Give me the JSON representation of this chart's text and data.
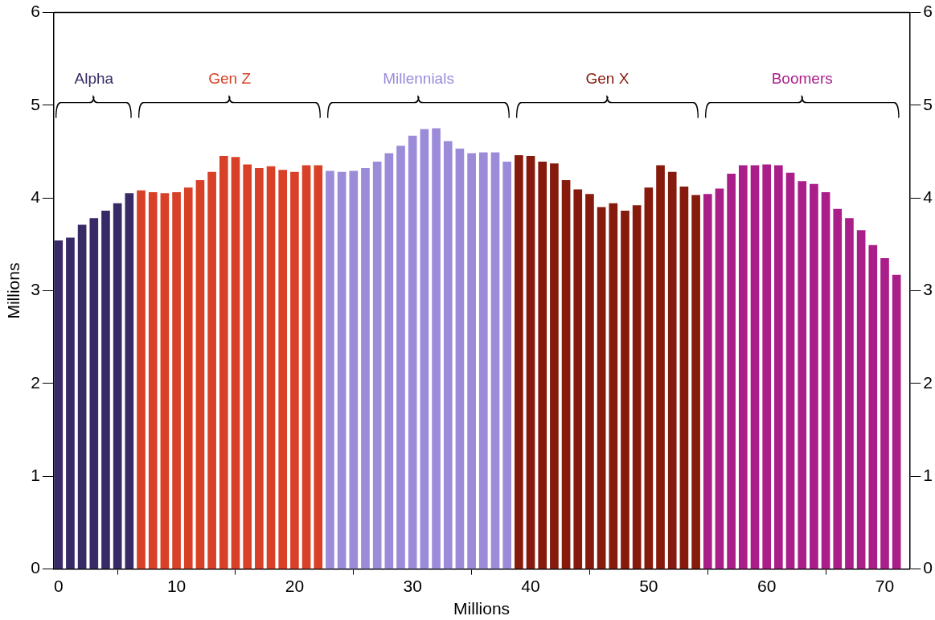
{
  "chart_data": {
    "type": "bar",
    "xlabel": "Millions",
    "ylabel": "Millions",
    "xlim": [
      -0.4,
      72.1
    ],
    "xticks": [
      0,
      10,
      20,
      30,
      40,
      50,
      60,
      70
    ],
    "ylim": [
      0,
      6
    ],
    "yticks": [
      0,
      1,
      2,
      3,
      4,
      5,
      6
    ],
    "y2lim": [
      0,
      6
    ],
    "y2ticks": [
      0,
      1,
      2,
      3,
      4,
      5,
      6
    ],
    "grid": false,
    "legend": false,
    "series": [
      {
        "name": "Alpha",
        "color": "#372a66",
        "x": [
          0,
          1,
          2,
          3,
          4,
          5,
          6
        ],
        "values": [
          3.54,
          3.57,
          3.71,
          3.78,
          3.86,
          3.94,
          4.05
        ]
      },
      {
        "name": "Gen Z",
        "color": "#d84127",
        "x": [
          7,
          8,
          9,
          10,
          11,
          12,
          13,
          14,
          15,
          16,
          17,
          18,
          19,
          20,
          21,
          22
        ],
        "values": [
          4.08,
          4.06,
          4.05,
          4.06,
          4.11,
          4.19,
          4.28,
          4.45,
          4.44,
          4.36,
          4.32,
          4.34,
          4.3,
          4.28,
          4.35,
          4.35
        ]
      },
      {
        "name": "Millennials",
        "color": "#9b8bd9",
        "x": [
          23,
          24,
          25,
          26,
          27,
          28,
          29,
          30,
          31,
          32,
          33,
          34,
          35,
          36,
          37,
          38
        ],
        "values": [
          4.29,
          4.28,
          4.29,
          4.32,
          4.39,
          4.48,
          4.56,
          4.67,
          4.74,
          4.75,
          4.61,
          4.53,
          4.48,
          4.49,
          4.49,
          4.39
        ]
      },
      {
        "name": "Gen X",
        "color": "#861a0d",
        "x": [
          39,
          40,
          41,
          42,
          43,
          44,
          45,
          46,
          47,
          48,
          49,
          50,
          51,
          52,
          53,
          54
        ],
        "values": [
          4.46,
          4.45,
          4.39,
          4.37,
          4.19,
          4.09,
          4.04,
          3.9,
          3.94,
          3.86,
          3.92,
          4.11,
          4.35,
          4.28,
          4.12,
          4.03
        ]
      },
      {
        "name": "Boomers",
        "color": "#aa1e8a",
        "x": [
          55,
          56,
          57,
          58,
          59,
          60,
          61,
          62,
          63,
          64,
          65,
          66,
          67,
          68,
          69,
          70,
          71
        ],
        "values": [
          4.04,
          4.1,
          4.26,
          4.35,
          4.35,
          4.36,
          4.35,
          4.27,
          4.18,
          4.15,
          4.06,
          3.88,
          3.78,
          3.65,
          3.49,
          3.35,
          3.17
        ]
      }
    ]
  }
}
